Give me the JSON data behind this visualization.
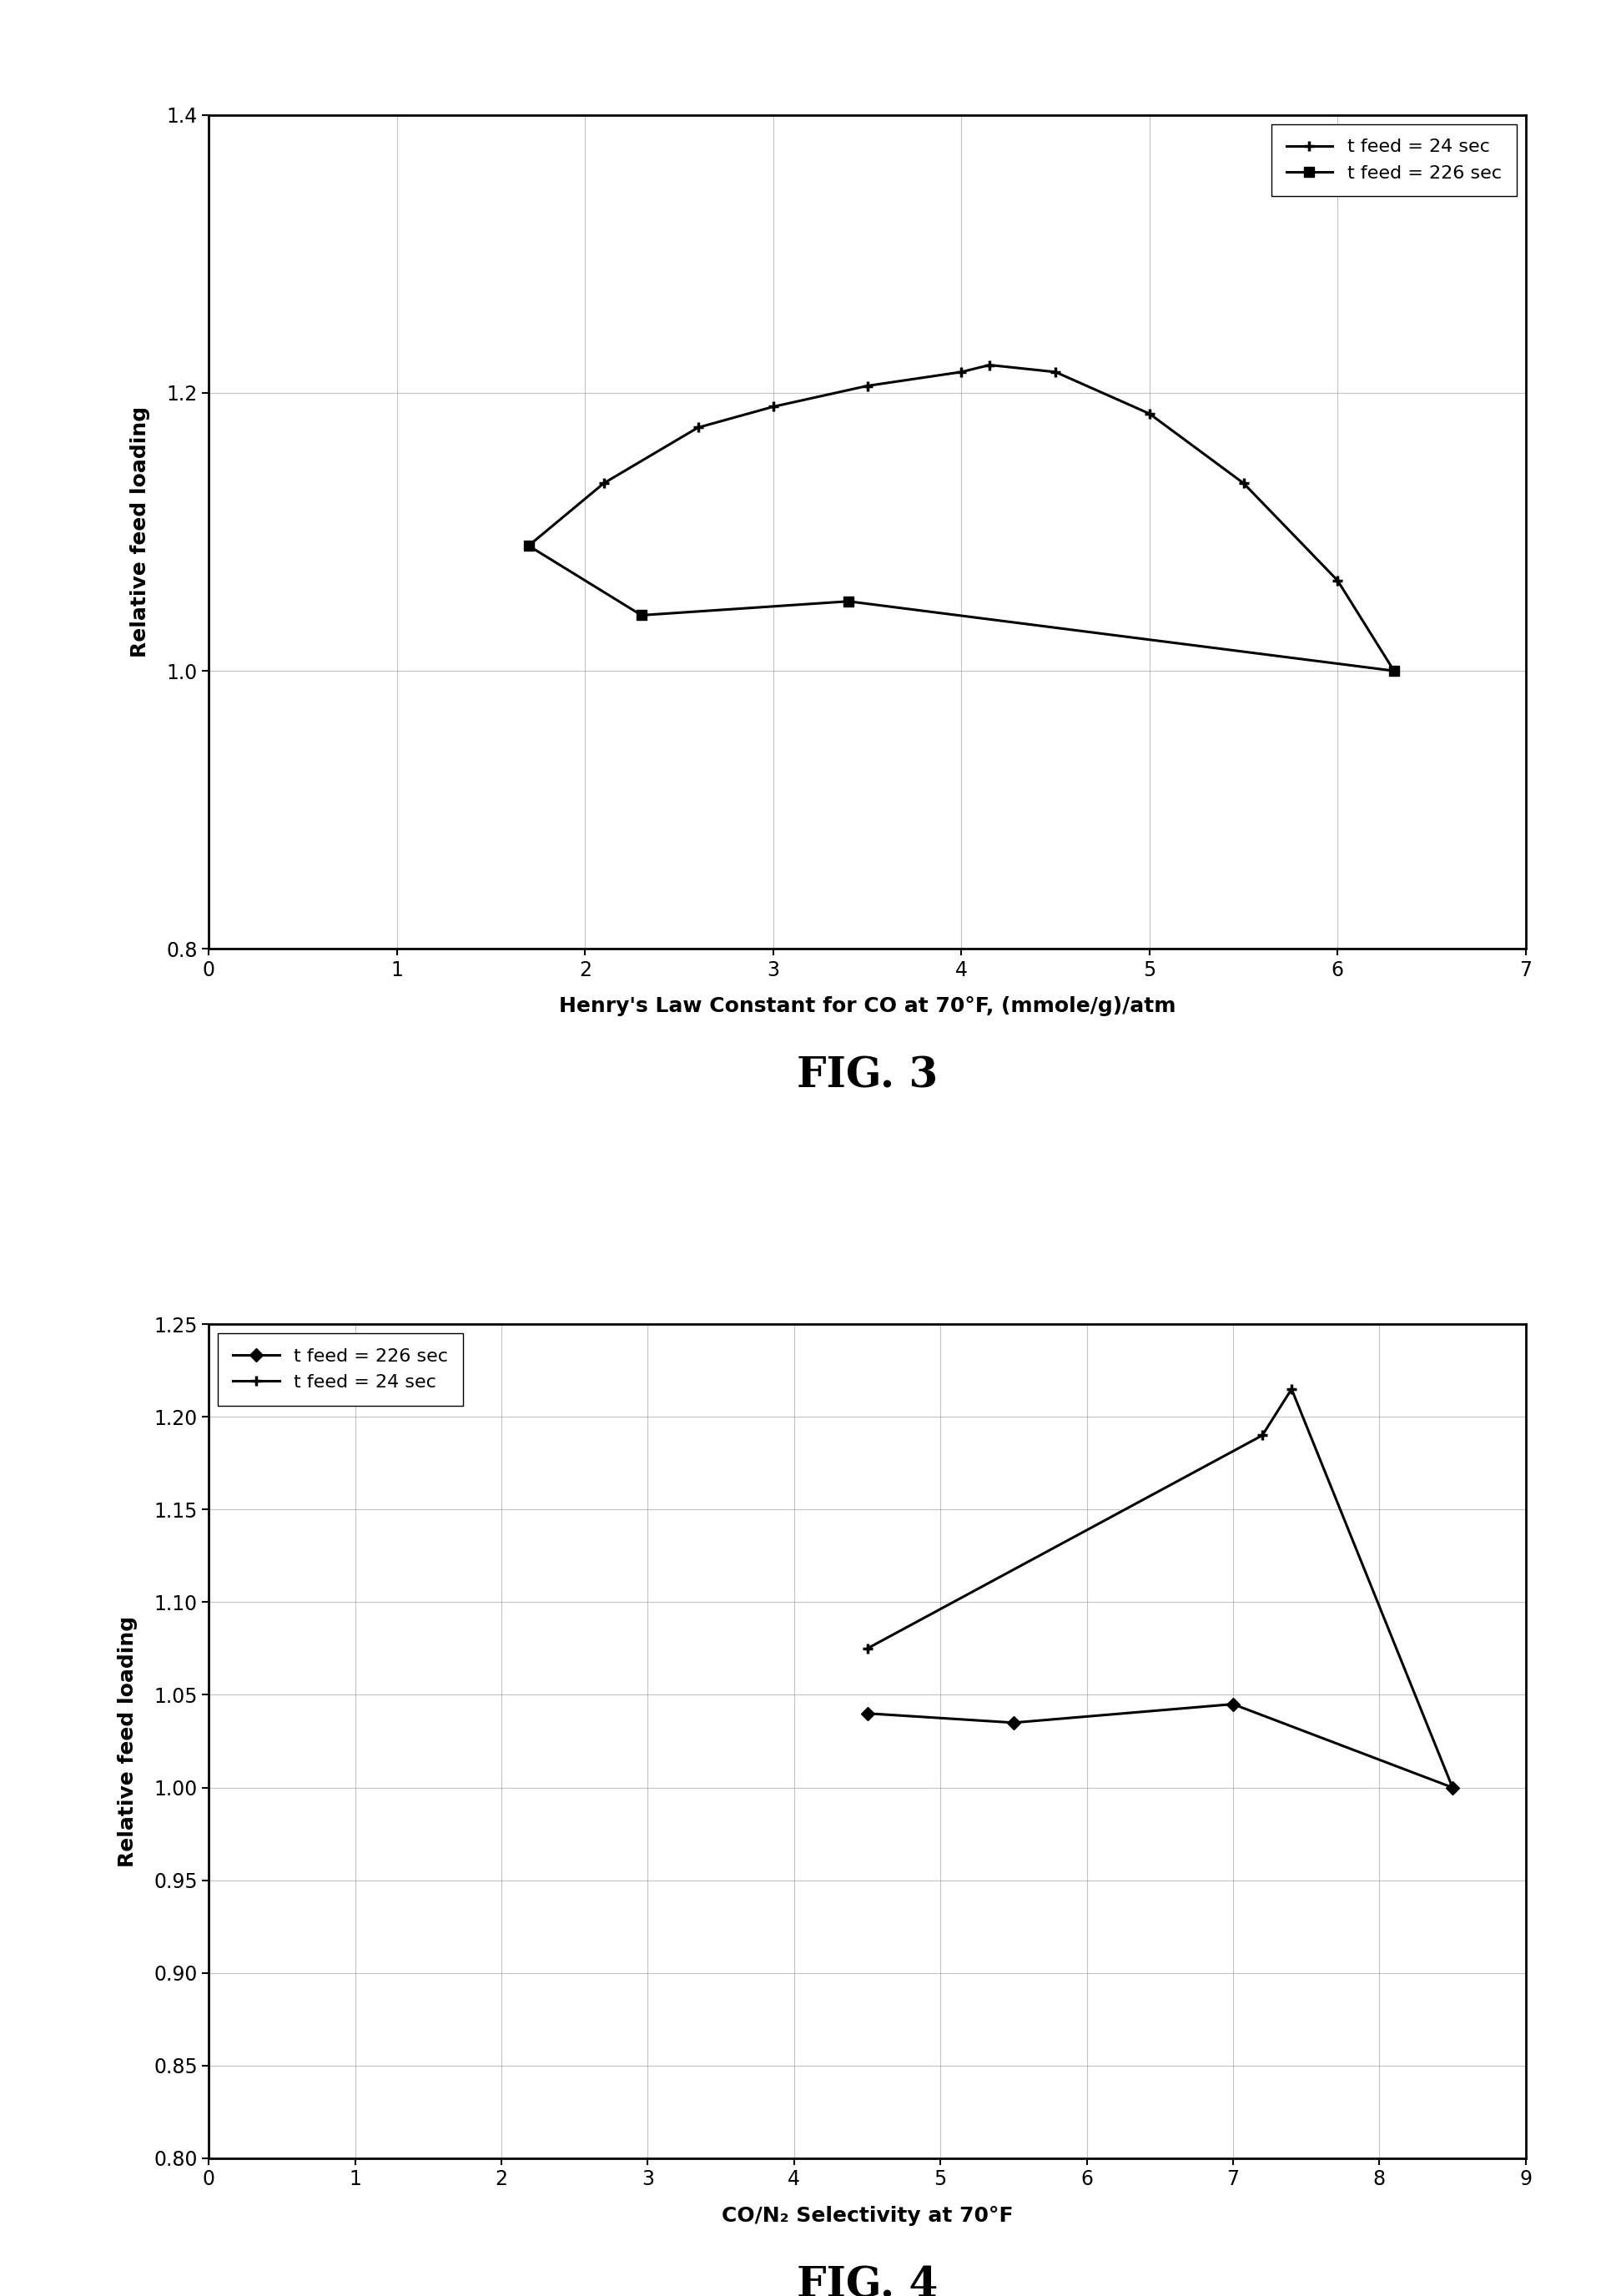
{
  "fig3": {
    "title": "FIG. 3",
    "xlabel": "Henry's Law Constant for CO at 70°F, (mmole/g)/atm",
    "ylabel": "Relative feed loading",
    "xlim": [
      0,
      7
    ],
    "ylim": [
      0.8,
      1.4
    ],
    "xticks": [
      0,
      1,
      2,
      3,
      4,
      5,
      6,
      7
    ],
    "yticks": [
      0.8,
      1.0,
      1.2,
      1.4
    ],
    "line1_label": "t feed = 24 sec",
    "line1_x": [
      1.7,
      2.1,
      2.6,
      3.0,
      3.5,
      4.0,
      4.15,
      4.5,
      5.0,
      5.5,
      6.0,
      6.3
    ],
    "line1_y": [
      1.09,
      1.135,
      1.175,
      1.19,
      1.205,
      1.215,
      1.22,
      1.215,
      1.185,
      1.135,
      1.065,
      1.0
    ],
    "line2_label": "t feed = 226 sec",
    "line2_x": [
      1.7,
      2.3,
      3.4,
      6.3
    ],
    "line2_y": [
      1.09,
      1.04,
      1.05,
      1.0
    ]
  },
  "fig4": {
    "title": "FIG. 4",
    "xlabel": "CO/N₂ Selectivity at 70°F",
    "ylabel": "Relative feed loading",
    "xlim": [
      0,
      9
    ],
    "ylim": [
      0.8,
      1.25
    ],
    "xticks": [
      0,
      1,
      2,
      3,
      4,
      5,
      6,
      7,
      8,
      9
    ],
    "yticks": [
      0.8,
      0.85,
      0.9,
      0.95,
      1.0,
      1.05,
      1.1,
      1.15,
      1.2,
      1.25
    ],
    "line1_label": "t feed = 226 sec",
    "line1_x": [
      4.5,
      5.5,
      7.0,
      8.5
    ],
    "line1_y": [
      1.04,
      1.035,
      1.045,
      1.0
    ],
    "line2_label": "t feed = 24 sec",
    "line2_x": [
      4.5,
      7.2,
      7.4,
      8.5
    ],
    "line2_y": [
      1.075,
      1.19,
      1.215,
      1.0
    ]
  },
  "fig_title_fontsize": 36,
  "axis_label_fontsize": 18,
  "tick_fontsize": 17,
  "legend_fontsize": 16,
  "background_color": "#ffffff",
  "line_color": "#000000",
  "grid_color": "#888888",
  "grid_alpha": 0.5,
  "grid_linewidth": 0.8,
  "line_linewidth": 2.2,
  "marker_size": 9
}
